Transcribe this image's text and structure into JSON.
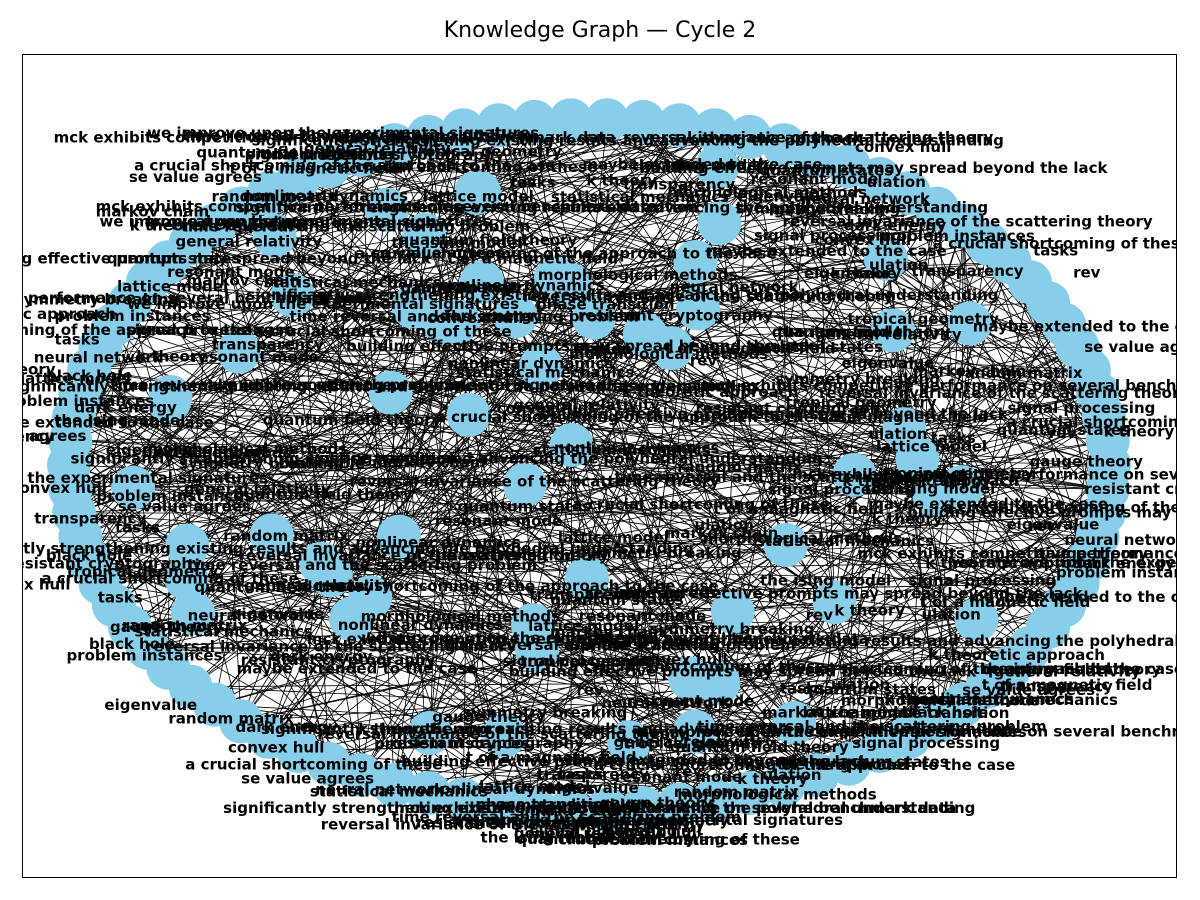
{
  "title": "Knowledge Graph — Cycle 2",
  "colors": {
    "node": "#87ceeb",
    "edge": "#000000",
    "label": "#000000"
  },
  "graph": {
    "node_labels": [
      "significantly strengthening existing results and advancing the polyhedral understanding",
      "mck exhibits competitive performance on several benchmark data",
      "reversal invariance of the scattering theory",
      "we improve upon the experimental signatures",
      "time reversal and the scattering problem",
      "k theoretic approach",
      "dark energy",
      "tropical geometry",
      "resistant cryptography",
      "problem instances",
      "convex hull",
      "signal processing",
      "general relativity",
      "quantum field theory",
      "the ising model",
      "a crucial shortcoming of these",
      "a crucial shortcoming of the approach to the case",
      "maybe extended to the case",
      "building effective prompts may spread beyond the lack",
      "t of a magnetic field",
      "quantum states",
      "se value agrees",
      "tasks",
      "transparency",
      "ulation",
      "rev",
      "k theory",
      "resonant mode",
      "eigenvalue",
      "morphological methods",
      "neural network",
      "nonlinear dynamics",
      "statistical mechanics",
      "lattice model",
      "random matrix",
      "markov chain",
      "gauge theory",
      "symmetry breaking",
      "black hole",
      "phase transition"
    ]
  }
}
